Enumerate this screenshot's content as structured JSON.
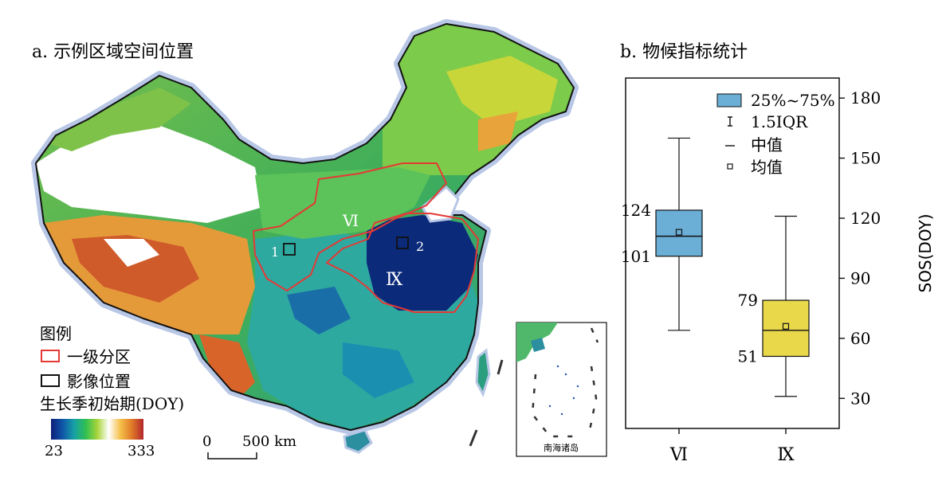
{
  "panel_a": {
    "title": "a. 示例区域空间位置",
    "region_labels": {
      "vi": "Ⅵ",
      "ix": "Ⅸ"
    },
    "site_labels": {
      "site1": "1",
      "site2": "2"
    },
    "legend": {
      "title": "图例",
      "zone_label": "一级分区",
      "image_label": "影像位置",
      "colorbar_title": "生长季初始期(DOY)",
      "colorbar_min": "23",
      "colorbar_max": "333",
      "colorbar_colors": [
        "#0d1e78",
        "#0f56a8",
        "#17a0a6",
        "#2fbf52",
        "#a8d43a",
        "#ffffff",
        "#f5c04a",
        "#e07a28",
        "#b3262c"
      ],
      "zone_color": "#e53935",
      "image_color": "#111111"
    },
    "scale": {
      "zero": "0",
      "distance": "500 km"
    },
    "inset_label": "南海诸岛"
  },
  "panel_b": {
    "title": "b. 物候指标统计"
  },
  "chart_data": {
    "type": "box",
    "categories": [
      "Ⅵ",
      "Ⅸ"
    ],
    "ylabel": "SOS(DOY)",
    "ylim": [
      15,
      190
    ],
    "yticks": [
      30,
      60,
      90,
      120,
      150,
      180
    ],
    "y_axis_side": "right",
    "legend": {
      "placement": "top-right",
      "entries": [
        "25%~75%",
        "1.5IQR",
        "中值",
        "均值"
      ]
    },
    "boxes": [
      {
        "category": "Ⅵ",
        "q1": 101,
        "median": 111,
        "q3": 124,
        "mean": 113,
        "whisker_low": 64,
        "whisker_high": 160,
        "q3_label": "124",
        "q1_label": "101",
        "color": "#6baed6"
      },
      {
        "category": "Ⅸ",
        "q1": 51,
        "median": 64,
        "q3": 79,
        "mean": 66,
        "whisker_low": 31,
        "whisker_high": 121,
        "q3_label": "79",
        "q1_label": "51",
        "color": "#e8d84a"
      }
    ]
  }
}
